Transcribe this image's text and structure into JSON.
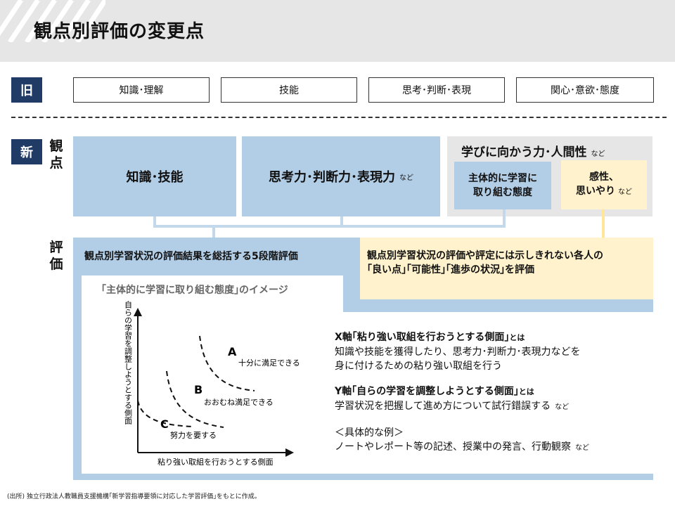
{
  "title": "観点別評価の変更点",
  "old": {
    "tag": "旧",
    "items": [
      "知識･理解",
      "技能",
      "思考･判断･表現",
      "関心･意欲･態度"
    ]
  },
  "new": {
    "tag": "新",
    "viewpoint_label": [
      "観",
      "点"
    ],
    "evaluation_label": [
      "評",
      "価"
    ],
    "viewpoints": {
      "knowledge": "知識･技能",
      "thinking": "思考力･判断力･表現力",
      "thinking_suffix": "など",
      "humanity": "学びに向かう力･人間性",
      "humanity_suffix": "など",
      "attitude_line1": "主体的に学習に",
      "attitude_line2": "取り組む態度",
      "sensibility_line1": "感性、",
      "sensibility_line2": "思いやり",
      "sensibility_suffix": "など"
    },
    "five_level": "観点別学習状況の評価結果を総括する5段階評価",
    "individual_line1": "観点別学習状況の評価や評定には示しきれない各人の",
    "individual_line2": "｢良い点｣｢可能性｣｢進歩の状況｣を評価",
    "image_title": "｢主体的に学習に取り組む態度｣のイメージ"
  },
  "chart_data": {
    "type": "diagram",
    "ylabel": "自らの学習を調整しようとする側面",
    "xlabel": "粘り強い取組を行おうとする側面",
    "levels": [
      {
        "letter": "A",
        "label": "十分に満足できる"
      },
      {
        "letter": "B",
        "label": "おおむね満足できる"
      },
      {
        "letter": "C",
        "label": "努力を要する"
      }
    ]
  },
  "notes": {
    "x_head": "X軸｢粘り強い取組を行おうとする側面｣",
    "x_towa": "とは",
    "x_body1": "知識や技能を獲得したり、思考力･判断力･表現力などを",
    "x_body2": "身に付けるための粘り強い取組を行う",
    "y_head": "Y軸｢自らの学習を調整しようとする側面｣",
    "y_towa": "とは",
    "y_body": "学習状況を把握して進め方について試行錯誤する",
    "y_body_suffix": "など",
    "example_head": "＜具体的な例＞",
    "example_body": "ノートやレポート等の記述、授業中の発言、行動観察",
    "example_suffix": "など"
  },
  "source": "(出所) 独立行政法人教職員支援機構｢新学習指導要領に対応した学習評価｣をもとに作成。"
}
